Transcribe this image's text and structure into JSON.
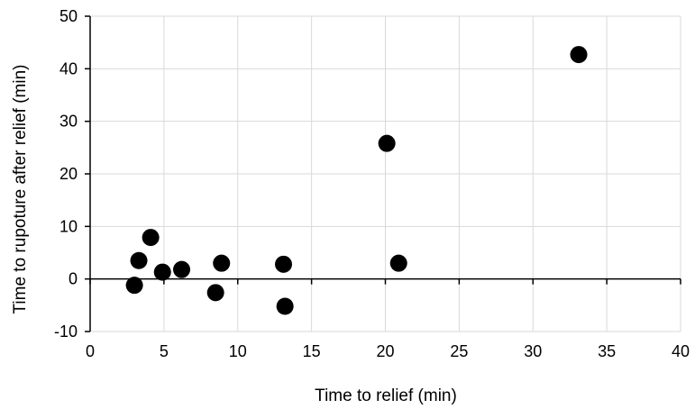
{
  "chart_data": {
    "type": "scatter",
    "title": "",
    "xlabel": "Time to relief (min)",
    "ylabel": "Time to rupoture after relief (min)",
    "xlim": [
      0,
      40
    ],
    "ylim": [
      -10,
      50
    ],
    "xticks": [
      0,
      5,
      10,
      15,
      20,
      25,
      30,
      35,
      40
    ],
    "yticks": [
      -10,
      0,
      10,
      20,
      30,
      40,
      50
    ],
    "grid": true,
    "marker_color": "#000000",
    "series": [
      {
        "points": [
          {
            "x": 3.0,
            "y": -1.2
          },
          {
            "x": 3.3,
            "y": 3.5
          },
          {
            "x": 4.1,
            "y": 7.9
          },
          {
            "x": 4.9,
            "y": 1.3
          },
          {
            "x": 6.2,
            "y": 1.8
          },
          {
            "x": 8.5,
            "y": -2.6
          },
          {
            "x": 8.9,
            "y": 3.0
          },
          {
            "x": 13.1,
            "y": 2.8
          },
          {
            "x": 13.2,
            "y": -5.2
          },
          {
            "x": 20.1,
            "y": 25.8
          },
          {
            "x": 20.9,
            "y": 3.0
          },
          {
            "x": 33.1,
            "y": 42.7
          }
        ]
      }
    ]
  }
}
